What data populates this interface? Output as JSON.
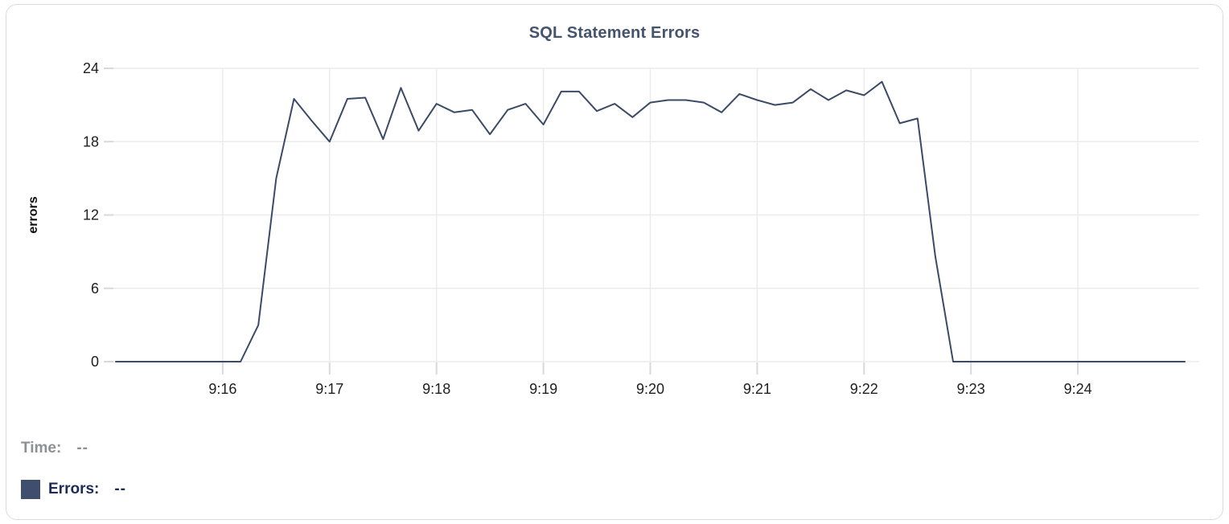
{
  "chart": {
    "title": "SQL Statement Errors"
  },
  "readout": {
    "time_label": "Time:",
    "time_value": "--",
    "errors_label": "Errors:",
    "errors_value": "--"
  },
  "colors": {
    "line": "#3b4a66",
    "swatch": "#3f4e6e",
    "title": "#44546e",
    "title_underline": "#99a3b8",
    "grid": "#ebebed",
    "tick": "#d9d9db",
    "tick_label": "#202024",
    "axis_title": "#0d0d0f",
    "time_readout": "#8e9095",
    "errors_readout": "#1d2b56",
    "card_border": "#d9dade"
  },
  "chart_data": {
    "type": "line",
    "title": "SQL Statement Errors",
    "xlabel": "",
    "ylabel": "errors",
    "series_name": "Errors",
    "grid": true,
    "legend_position": "bottom-left",
    "ylim": [
      0,
      24
    ],
    "y_ticks": [
      0,
      6,
      12,
      18,
      24
    ],
    "x_tick_labels": [
      "9:16",
      "9:17",
      "9:18",
      "9:19",
      "9:20",
      "9:21",
      "9:22",
      "9:23",
      "9:24"
    ],
    "x_range": [
      "9:15:00",
      "9:25:00"
    ],
    "times": [
      "9:15:00",
      "9:15:10",
      "9:15:20",
      "9:15:30",
      "9:15:40",
      "9:15:50",
      "9:16:00",
      "9:16:10",
      "9:16:20",
      "9:16:30",
      "9:16:40",
      "9:16:50",
      "9:17:00",
      "9:17:10",
      "9:17:20",
      "9:17:30",
      "9:17:40",
      "9:17:50",
      "9:18:00",
      "9:18:10",
      "9:18:20",
      "9:18:30",
      "9:18:40",
      "9:18:50",
      "9:19:00",
      "9:19:10",
      "9:19:20",
      "9:19:30",
      "9:19:40",
      "9:19:50",
      "9:20:00",
      "9:20:10",
      "9:20:20",
      "9:20:30",
      "9:20:40",
      "9:20:50",
      "9:21:00",
      "9:21:10",
      "9:21:20",
      "9:21:30",
      "9:21:40",
      "9:21:50",
      "9:22:00",
      "9:22:10",
      "9:22:20",
      "9:22:30",
      "9:22:40",
      "9:22:50",
      "9:23:00",
      "9:23:10",
      "9:23:20",
      "9:23:30",
      "9:23:40",
      "9:23:50",
      "9:24:00",
      "9:24:10",
      "9:24:20",
      "9:24:30",
      "9:24:40",
      "9:24:50",
      "9:25:00"
    ],
    "values": [
      0,
      0,
      0,
      0,
      0,
      0,
      0,
      0,
      3,
      15,
      21.5,
      19.7,
      18,
      21.5,
      21.6,
      18.2,
      22.4,
      18.9,
      21.1,
      20.4,
      20.6,
      18.6,
      20.6,
      21.1,
      19.4,
      22.1,
      22.1,
      20.5,
      21.1,
      20,
      21.2,
      21.4,
      21.4,
      21.2,
      20.4,
      21.9,
      21.4,
      21,
      21.2,
      22.3,
      21.4,
      22.2,
      21.8,
      22.9,
      19.5,
      19.9,
      8.6,
      0,
      0,
      0,
      0,
      0,
      0,
      0,
      0,
      0,
      0,
      0,
      0,
      0,
      0
    ]
  }
}
